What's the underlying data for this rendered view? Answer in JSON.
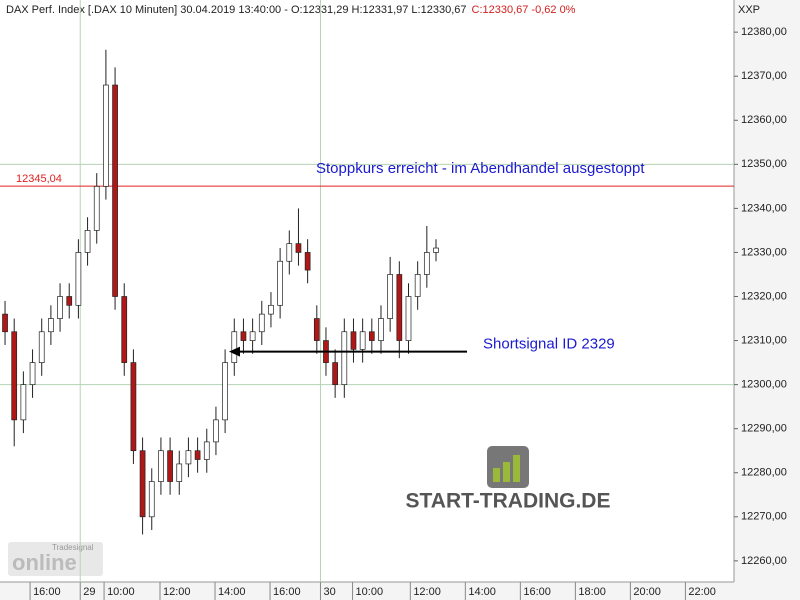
{
  "chart_data": {
    "type": "candlestick",
    "header": {
      "info": "DAX Perf. Index [.DAX  10 Minuten] 30.04.2019 13:40:00 - O:12331,29 H:12331,97 L:12330,67",
      "change": "C:12330,67 -0,62 0%"
    },
    "axis_label": "XXP",
    "open": [
      12316,
      12312,
      12292,
      12300,
      12305,
      12312,
      12315,
      12320,
      12318,
      12330,
      12335,
      12345,
      12368,
      12320,
      12305,
      12285,
      12270,
      12278,
      12285,
      12278,
      12282,
      12285,
      12283,
      12287,
      12292,
      12305,
      12312,
      12310,
      12312,
      12316,
      12318,
      12328,
      12332,
      12330,
      12315,
      12310,
      12305,
      12300,
      12312,
      12308,
      12312,
      12310,
      12315,
      12325,
      12310,
      12320,
      12325,
      12330
    ],
    "high": [
      12319,
      12315,
      12303,
      12308,
      12315,
      12318,
      12323,
      12323,
      12333,
      12338,
      12348,
      12376,
      12372,
      12323,
      12308,
      12288,
      12281,
      12288,
      12288,
      12285,
      12288,
      12288,
      12290,
      12295,
      12308,
      12315,
      12315,
      12315,
      12319,
      12321,
      12331,
      12335,
      12340,
      12333,
      12318,
      12313,
      12308,
      12315,
      12315,
      12315,
      12315,
      12318,
      12329,
      12328,
      12323,
      12328,
      12336,
      12333
    ],
    "low": [
      12309,
      12286,
      12289,
      12297,
      12302,
      12309,
      12312,
      12315,
      12315,
      12327,
      12332,
      12342,
      12317,
      12302,
      12282,
      12266,
      12267,
      12275,
      12275,
      12275,
      12279,
      12280,
      12280,
      12284,
      12289,
      12302,
      12307,
      12307,
      12309,
      12313,
      12315,
      12325,
      12327,
      12323,
      12307,
      12302,
      12297,
      12297,
      12305,
      12305,
      12307,
      12307,
      12312,
      12306,
      12307,
      12317,
      12322,
      12328
    ],
    "close": [
      12312,
      12292,
      12300,
      12305,
      12312,
      12315,
      12320,
      12318,
      12330,
      12335,
      12345,
      12368,
      12320,
      12305,
      12285,
      12270,
      12278,
      12285,
      12278,
      12282,
      12285,
      12283,
      12287,
      12292,
      12305,
      12312,
      12310,
      12312,
      12316,
      12318,
      12328,
      12332,
      12330,
      12326,
      12310,
      12305,
      12300,
      12312,
      12308,
      12312,
      12310,
      12315,
      12325,
      12310,
      12320,
      12325,
      12330,
      12331
    ],
    "up_color": "#ffffff",
    "down_color": "#b01818",
    "ylim": [
      12255.2,
      12387.3
    ],
    "yticks": [
      {
        "value": 12260,
        "label": "12260,00"
      },
      {
        "value": 12270,
        "label": "12270,00"
      },
      {
        "value": 12280,
        "label": "12280,00"
      },
      {
        "value": 12290,
        "label": "12290,00"
      },
      {
        "value": 12300,
        "label": "12300,00"
      },
      {
        "value": 12310,
        "label": "12310,00"
      },
      {
        "value": 12320,
        "label": "12320,00"
      },
      {
        "value": 12330,
        "label": "12330,00"
      },
      {
        "value": 12340,
        "label": "12340,00"
      },
      {
        "value": 12350,
        "label": "12350,00"
      },
      {
        "value": 12360,
        "label": "12360,00"
      },
      {
        "value": 12370,
        "label": "12370,00"
      },
      {
        "value": 12380,
        "label": "12380,00"
      }
    ],
    "xlim": [
      -0.55,
      79.5
    ],
    "xticks": [
      {
        "value": 2.73,
        "label": "16:00"
      },
      {
        "value": 8.2,
        "label": "29"
      },
      {
        "value": 10.8,
        "label": "10:00"
      },
      {
        "value": 16.9,
        "label": "12:00"
      },
      {
        "value": 22.9,
        "label": "14:00"
      },
      {
        "value": 28.9,
        "label": "16:00"
      },
      {
        "value": 34.4,
        "label": "30"
      },
      {
        "value": 37.9,
        "label": "10:00"
      },
      {
        "value": 44.2,
        "label": "12:00"
      },
      {
        "value": 50.2,
        "label": "14:00"
      },
      {
        "value": 56.2,
        "label": "16:00"
      },
      {
        "value": 62.2,
        "label": "18:00"
      },
      {
        "value": 68.2,
        "label": "20:00"
      },
      {
        "value": 74.2,
        "label": "22:00"
      }
    ],
    "level": {
      "value": 12345.04,
      "label": "12345,04",
      "color": "#e02020"
    },
    "annotations": [
      "Stoppkurs erreicht - im Abendhandel ausgestoppt",
      "Shortsignal ID 2329"
    ],
    "arrow_level": 12307.5,
    "logo": {
      "name": "START-TRADING.DE",
      "brand": "Tradesignal",
      "product": "online"
    }
  }
}
